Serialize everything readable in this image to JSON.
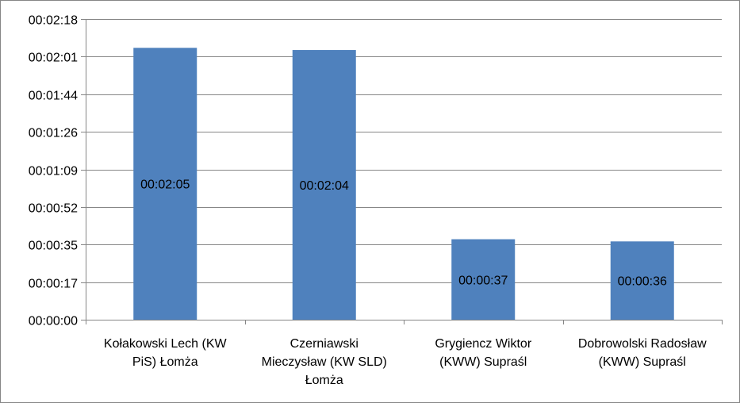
{
  "chart_data": {
    "type": "bar",
    "categories": [
      [
        "Kołakowski Lech (KW",
        "PiS) Łomża"
      ],
      [
        "Czerniawski",
        "Mieczysław (KW SLD)",
        "Łomża"
      ],
      [
        "Grygiencz Wiktor",
        "(KWW) Supraśl"
      ],
      [
        "Dobrowolski Radosław",
        "(KWW)  Supraśl"
      ]
    ],
    "values": [
      125,
      124,
      37,
      36
    ],
    "data_labels": [
      "00:02:05",
      "00:02:04",
      "00:00:37",
      "00:00:36"
    ],
    "y_ticks": [
      {
        "value": 0,
        "label": "00:00:00"
      },
      {
        "value": 17.28,
        "label": "00:00:17"
      },
      {
        "value": 34.56,
        "label": "00:00:35"
      },
      {
        "value": 51.84,
        "label": "00:00:52"
      },
      {
        "value": 69.12,
        "label": "00:01:09"
      },
      {
        "value": 86.4,
        "label": "00:01:26"
      },
      {
        "value": 103.68,
        "label": "00:01:44"
      },
      {
        "value": 120.96,
        "label": "00:02:01"
      },
      {
        "value": 138.24,
        "label": "00:02:18"
      }
    ],
    "ylim": [
      0,
      138.24
    ],
    "y_unit": "seconds",
    "grid": true,
    "legend": "none",
    "title": "",
    "xlabel": "",
    "ylabel": "",
    "colors": {
      "bar": "#4F81BD",
      "grid": "#868686",
      "axis": "#868686",
      "border": "#868686"
    }
  }
}
